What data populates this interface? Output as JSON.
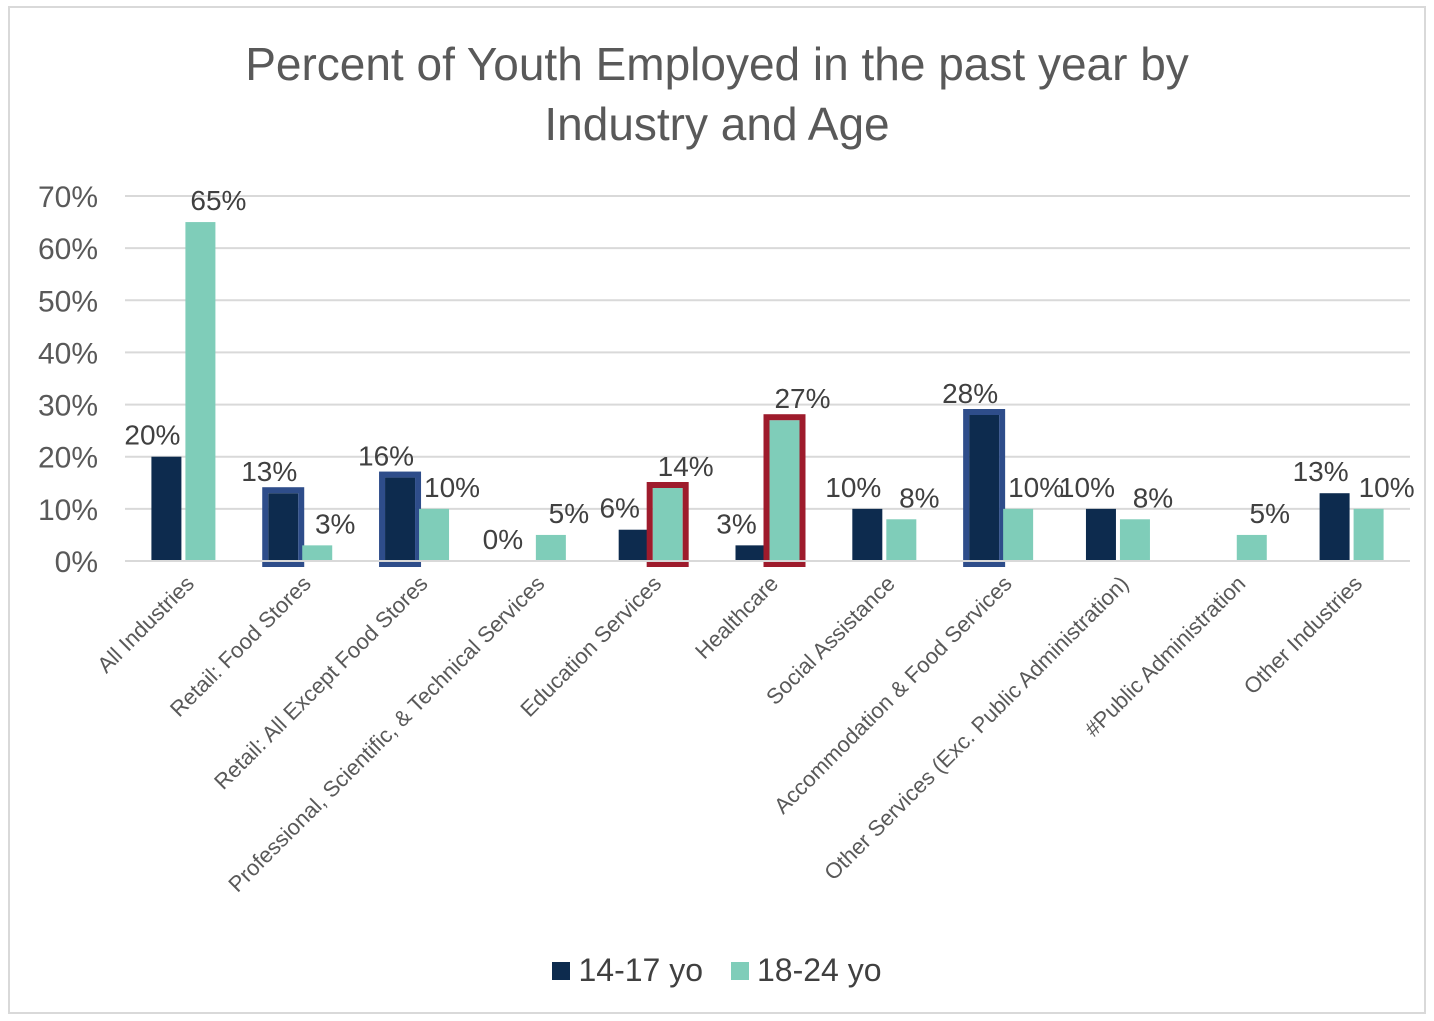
{
  "chart_data": {
    "type": "bar",
    "title": "Percent of Youth Employed in the past year by Industry and Age",
    "title_lines": [
      "Percent of Youth Employed in the past year by",
      "Industry and Age"
    ],
    "categories": [
      "All Industries",
      "Retail: Food Stores",
      "Retail: All Except Food Stores",
      "Professional, Scientific, & Technical Services",
      "Education Services",
      "Healthcare",
      "Social Assistance",
      "Accommodation & Food Services",
      "Other Services (Exc. Public Administration)",
      "#Public Administration",
      "Other Industries"
    ],
    "series": [
      {
        "name": "14-17 yo",
        "color": "#0d2b4e",
        "values": [
          20,
          13,
          16,
          0,
          6,
          3,
          10,
          28,
          10,
          null,
          13
        ],
        "labels": [
          "20%",
          "13%",
          "16%",
          "0%",
          "6%",
          "3%",
          "10%",
          "28%",
          "10%",
          "",
          "13%"
        ],
        "highlight_color": "#2e4d8a",
        "highlighted": [
          1,
          2,
          7
        ]
      },
      {
        "name": "18-24 yo",
        "color": "#7fcdb9",
        "values": [
          65,
          3,
          10,
          5,
          14,
          27,
          8,
          10,
          8,
          5,
          10
        ],
        "labels": [
          "65%",
          "3%",
          "10%",
          "5%",
          "14%",
          "27%",
          "8%",
          "10%",
          "8%",
          "5%",
          "10%"
        ],
        "highlight_color": "#9e1b2c",
        "highlighted": [
          4,
          5
        ]
      }
    ],
    "y_ticks": [
      "0%",
      "10%",
      "20%",
      "30%",
      "40%",
      "50%",
      "60%",
      "70%"
    ],
    "ylim": [
      0,
      70
    ],
    "grid": true,
    "legend_position": "bottom"
  }
}
